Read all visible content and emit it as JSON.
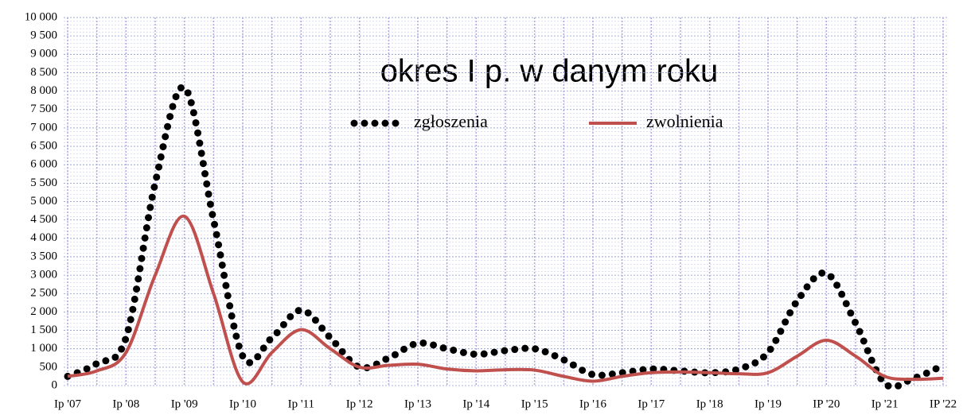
{
  "chart_data": {
    "type": "line",
    "title": "okres I p. w danym roku",
    "categories": [
      "Ip '07",
      null,
      "Ip '08",
      null,
      "Ip '09",
      null,
      "Ip '10",
      null,
      "Ip '11",
      null,
      "Ip '12",
      null,
      "Ip '13",
      null,
      "Ip '14",
      null,
      "Ip '15",
      null,
      "Ip '16",
      null,
      "Ip '17",
      null,
      "Ip '18",
      null,
      "Ip '19",
      null,
      "IP '20",
      null,
      "Ip '21",
      null,
      "IP '22"
    ],
    "series": [
      {
        "name": "zgłoszenia",
        "color": "#000000",
        "style": "dotted",
        "values": [
          250,
          600,
          1300,
          5500,
          8100,
          4500,
          800,
          1300,
          2050,
          1300,
          500,
          750,
          1150,
          1000,
          850,
          950,
          1000,
          700,
          300,
          350,
          450,
          400,
          350,
          450,
          900,
          2300,
          3050,
          1700,
          60,
          200,
          550
        ]
      },
      {
        "name": "zwolnienia",
        "color": "#c0504d",
        "style": "solid",
        "values": [
          250,
          400,
          900,
          3000,
          4600,
          2500,
          100,
          900,
          1520,
          1000,
          500,
          550,
          580,
          450,
          400,
          430,
          420,
          250,
          120,
          250,
          350,
          370,
          350,
          320,
          350,
          800,
          1230,
          800,
          250,
          170,
          200
        ]
      }
    ],
    "ylim": [
      0,
      10000
    ],
    "yticks": [
      0,
      500,
      {
        "value": 1000,
        "label": "1 000"
      },
      {
        "value": 1500,
        "label": "1 500"
      },
      {
        "value": 2000,
        "label": "2 000"
      },
      {
        "value": 2500,
        "label": "2 500"
      },
      {
        "value": 3000,
        "label": "3 000"
      },
      {
        "value": 3500,
        "label": "3 500"
      },
      {
        "value": 4000,
        "label": "4 000"
      },
      {
        "value": 4500,
        "label": "4 500"
      },
      {
        "value": 5000,
        "label": "5 000"
      },
      {
        "value": 5500,
        "label": "5 500"
      },
      {
        "value": 6000,
        "label": "6 000"
      },
      {
        "value": 6500,
        "label": "6 500"
      },
      {
        "value": 7000,
        "label": "7 000"
      },
      {
        "value": 7500,
        "label": "7 500"
      },
      {
        "value": 8000,
        "label": "8 000"
      },
      {
        "value": 8500,
        "label": "8 500"
      },
      {
        "value": 9000,
        "label": "9 000"
      },
      {
        "value": 9500,
        "label": "9 500"
      },
      {
        "value": 10000,
        "label": "10 000"
      }
    ],
    "grid": true,
    "legend_position": "top"
  }
}
